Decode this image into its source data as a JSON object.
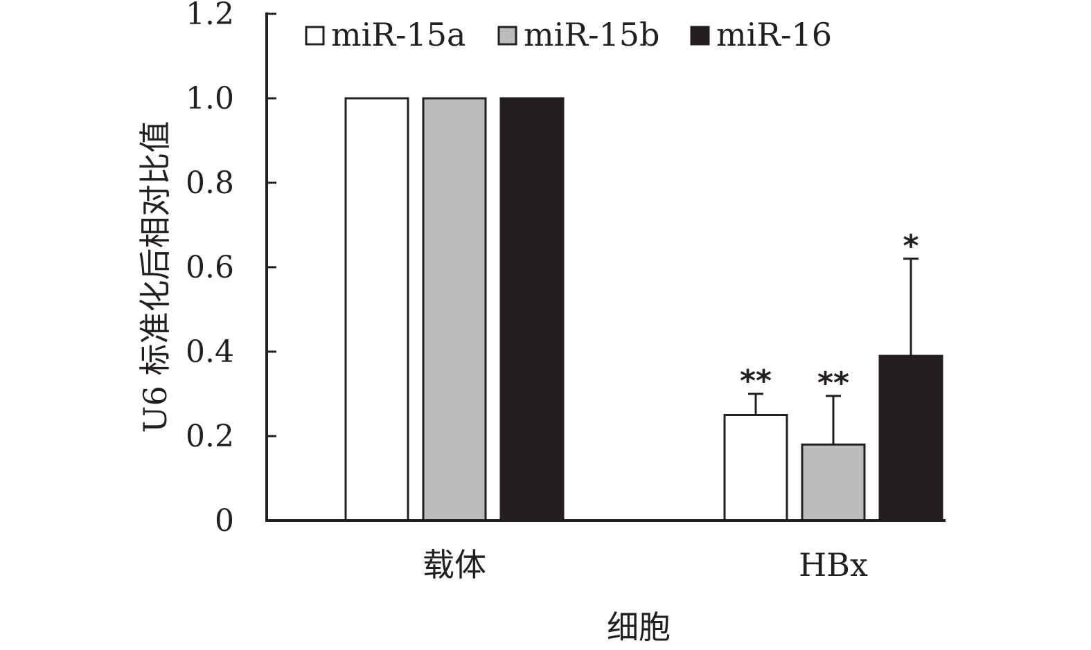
{
  "chart_data": {
    "type": "bar",
    "categories": [
      "载体",
      "HBx"
    ],
    "series": [
      {
        "name": "miR-15a",
        "values": [
          1.0,
          0.25
        ],
        "error": [
          null,
          0.05
        ],
        "color": "#ffffff"
      },
      {
        "name": "miR-15b",
        "values": [
          1.0,
          0.18
        ],
        "error": [
          null,
          0.115
        ],
        "color": "#bcbcbc"
      },
      {
        "name": "miR-16",
        "values": [
          1.0,
          0.39
        ],
        "error": [
          null,
          0.23
        ],
        "color": "#231f20"
      }
    ],
    "annotations": [
      {
        "category": 1,
        "series": 0,
        "text": "**"
      },
      {
        "category": 1,
        "series": 1,
        "text": "**"
      },
      {
        "category": 1,
        "series": 2,
        "text": "*"
      }
    ],
    "xlabel": "细胞",
    "ylabel": "U6 标准化后相对比值",
    "ylim": [
      0,
      1.2
    ],
    "yticks": [
      0,
      0.2,
      0.4,
      0.6,
      0.8,
      1.0,
      1.2
    ],
    "ytick_labels": [
      "0",
      "0.2",
      "0.4",
      "0.6",
      "0.8",
      "1.0",
      "1.2"
    ],
    "grid": false,
    "legend_position": "top"
  }
}
